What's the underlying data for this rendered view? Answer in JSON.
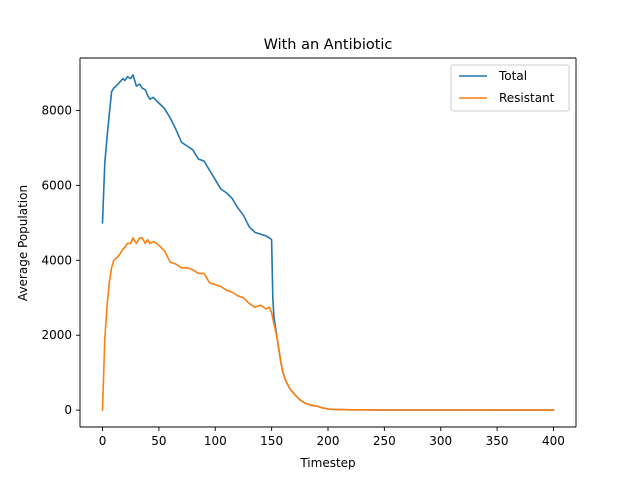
{
  "chart_data": {
    "type": "line",
    "title": "With an  Antibiotic",
    "xlabel": "Timestep",
    "ylabel": "Average Population",
    "xlim": [
      -20,
      420
    ],
    "ylim": [
      -450,
      9400
    ],
    "xticks": [
      0,
      50,
      100,
      150,
      200,
      250,
      300,
      350,
      400
    ],
    "yticks": [
      0,
      2000,
      4000,
      6000,
      8000
    ],
    "grid": false,
    "legend_position": "top-right",
    "series": [
      {
        "name": "Total",
        "color": "#1f77b4",
        "x": [
          0,
          2,
          4,
          6,
          8,
          10,
          12,
          15,
          18,
          20,
          22,
          25,
          27,
          28,
          30,
          33,
          35,
          38,
          40,
          42,
          45,
          48,
          50,
          55,
          60,
          65,
          70,
          75,
          80,
          85,
          90,
          95,
          100,
          105,
          110,
          115,
          120,
          125,
          130,
          135,
          140,
          145,
          148,
          150,
          151,
          152,
          154,
          156,
          158,
          160,
          163,
          166,
          170,
          175,
          180,
          185,
          190,
          195,
          200,
          205,
          210,
          220,
          230,
          240,
          250,
          275,
          300,
          325,
          350,
          375,
          400
        ],
        "y": [
          5000,
          6600,
          7300,
          7900,
          8500,
          8600,
          8650,
          8750,
          8850,
          8800,
          8900,
          8850,
          8950,
          8850,
          8650,
          8700,
          8600,
          8550,
          8400,
          8300,
          8350,
          8250,
          8200,
          8050,
          7800,
          7500,
          7150,
          7050,
          6950,
          6700,
          6650,
          6400,
          6150,
          5900,
          5800,
          5650,
          5400,
          5200,
          4900,
          4750,
          4700,
          4650,
          4600,
          4550,
          3000,
          2500,
          2100,
          1700,
          1300,
          1000,
          750,
          580,
          430,
          280,
          180,
          130,
          110,
          60,
          30,
          20,
          15,
          10,
          8,
          6,
          5,
          4,
          3,
          3,
          2,
          2,
          2
        ]
      },
      {
        "name": "Resistant",
        "color": "#ff7f0e",
        "x": [
          0,
          2,
          4,
          6,
          8,
          10,
          12,
          15,
          18,
          20,
          22,
          25,
          27,
          28,
          30,
          33,
          35,
          38,
          40,
          42,
          45,
          48,
          50,
          55,
          60,
          65,
          70,
          75,
          80,
          85,
          90,
          95,
          100,
          105,
          110,
          115,
          120,
          125,
          130,
          135,
          140,
          145,
          148,
          150,
          151,
          152,
          154,
          156,
          158,
          160,
          163,
          166,
          170,
          175,
          180,
          185,
          190,
          195,
          200,
          205,
          210,
          220,
          230,
          240,
          250,
          275,
          300,
          325,
          350,
          375,
          400
        ],
        "y": [
          0,
          1900,
          2800,
          3400,
          3800,
          4000,
          4050,
          4150,
          4300,
          4350,
          4450,
          4450,
          4600,
          4550,
          4450,
          4600,
          4600,
          4450,
          4550,
          4450,
          4500,
          4450,
          4400,
          4250,
          3950,
          3900,
          3800,
          3800,
          3750,
          3650,
          3650,
          3400,
          3350,
          3300,
          3200,
          3150,
          3050,
          3000,
          2850,
          2750,
          2800,
          2700,
          2750,
          2600,
          2450,
          2300,
          2050,
          1700,
          1300,
          1000,
          750,
          580,
          430,
          280,
          180,
          130,
          110,
          60,
          30,
          20,
          15,
          10,
          8,
          6,
          5,
          4,
          3,
          3,
          2,
          2,
          2
        ]
      }
    ]
  }
}
